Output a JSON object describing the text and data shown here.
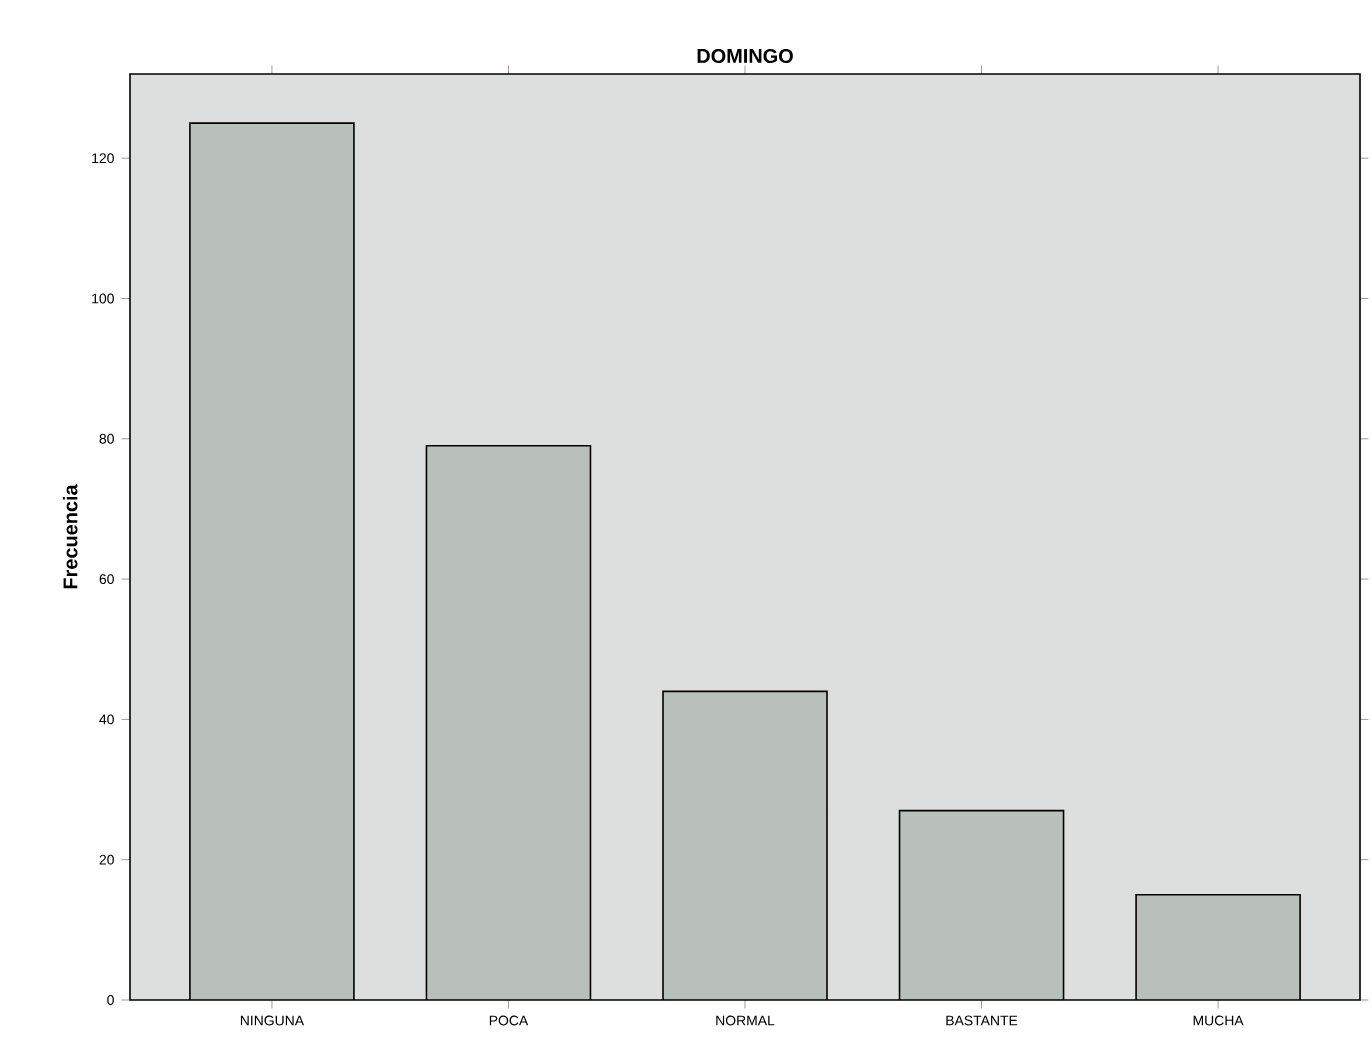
{
  "chart_data": {
    "type": "bar",
    "title": "DOMINGO",
    "ylabel": "Frecuencia",
    "categories": [
      "NINGUNA",
      "POCA",
      "NORMAL",
      "BASTANTE",
      "MUCHA"
    ],
    "values": [
      125,
      79,
      44,
      27,
      15
    ],
    "color": "#b9c0bc",
    "ylim": [
      0,
      132
    ],
    "yticks": [
      0,
      20,
      40,
      60,
      80,
      100,
      120
    ],
    "grid": false
  }
}
